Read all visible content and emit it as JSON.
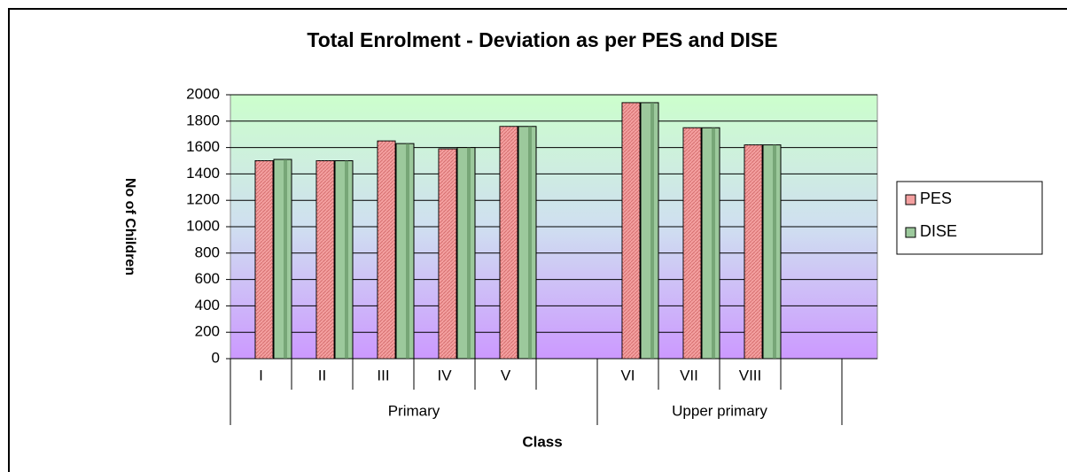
{
  "chart_data": {
    "type": "bar",
    "title": "Total Enrolment - Deviation as per PES and DISE",
    "xlabel": "Class",
    "ylabel": "No of Children",
    "categories": [
      "I",
      "II",
      "III",
      "IV",
      "V",
      null,
      "VI",
      "VII",
      "VIII",
      null
    ],
    "groups": [
      {
        "name": "Primary",
        "count": 6
      },
      {
        "name": "Upper primary",
        "count": 4
      }
    ],
    "series": [
      {
        "name": "PES",
        "color": "#f4a0a0",
        "values": [
          1500,
          1500,
          1650,
          1590,
          1760,
          null,
          1940,
          1750,
          1620,
          null
        ]
      },
      {
        "name": "DISE",
        "color": "#9cc99c",
        "values": [
          1510,
          1500,
          1630,
          1600,
          1760,
          null,
          1940,
          1750,
          1620,
          null
        ]
      }
    ],
    "ylim": [
      0,
      2000
    ],
    "yticks": [
      0,
      200,
      400,
      600,
      800,
      1000,
      1200,
      1400,
      1600,
      1800,
      2000
    ],
    "grid": true
  }
}
